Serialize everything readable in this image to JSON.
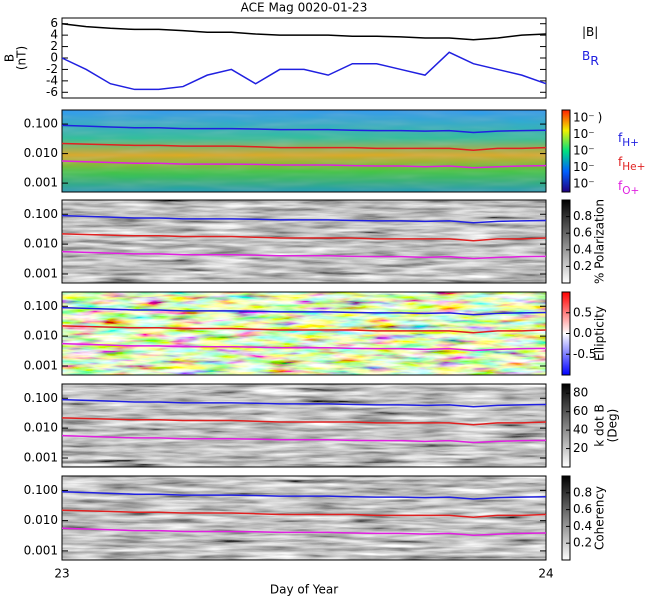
{
  "chart_data": [
    {
      "type": "line",
      "title": "ACE Mag 0020-01-23",
      "ylabel": [
        "B",
        "(nT)"
      ],
      "scale": "linear",
      "xlim": [
        23,
        24
      ],
      "ylim": [
        -7,
        7
      ],
      "yticks": [
        6,
        4,
        2,
        0,
        -2,
        -4,
        -6
      ],
      "x": [
        23,
        23.05,
        23.1,
        23.15,
        23.2,
        23.25,
        23.3,
        23.35,
        23.4,
        23.45,
        23.5,
        23.55,
        23.6,
        23.65,
        23.7,
        23.75,
        23.8,
        23.85,
        23.9,
        23.95,
        24
      ],
      "series": [
        {
          "name": "|B|",
          "color": "#000000",
          "values": [
            6,
            5.5,
            5.2,
            5,
            5,
            4.8,
            4.5,
            4.5,
            4.2,
            4,
            4,
            4,
            3.8,
            3.8,
            3.7,
            3.5,
            3.5,
            3.2,
            3.5,
            4,
            4.2
          ]
        },
        {
          "name": "B",
          "name_sub": "R",
          "color": "#2020e0",
          "values": [
            0,
            -2,
            -4.5,
            -5.5,
            -5.5,
            -5,
            -3,
            -2,
            -4.5,
            -2,
            -2,
            -3,
            -1,
            -1,
            -2,
            -3,
            1,
            -1,
            -2,
            -3,
            -4.5
          ]
        }
      ]
    },
    {
      "type": "spectrogram",
      "palette": "rainbow",
      "scale": "log",
      "xlim": [
        23,
        24
      ],
      "ylim": [
        0.0005,
        0.3
      ],
      "yticks": [
        {
          "value": 0.1,
          "label": "0.100"
        },
        {
          "value": 0.01,
          "label": "0.010"
        },
        0.001
      ],
      "colorbar_labels": [
        "10⁻",
        "10⁻",
        "10⁻",
        "10⁻",
        "10⁻"
      ],
      "colorbar_title": ")",
      "series": [
        {
          "name": "f",
          "name_sub": "H+",
          "color": "#2020e0",
          "values": [
            0.09,
            0.085,
            0.08,
            0.075,
            0.075,
            0.07,
            0.07,
            0.07,
            0.068,
            0.065,
            0.065,
            0.065,
            0.062,
            0.06,
            0.06,
            0.058,
            0.06,
            0.052,
            0.058,
            0.06,
            0.062
          ]
        },
        {
          "name": "f",
          "name_sub": "He+",
          "color": "#e02020",
          "values": [
            0.022,
            0.021,
            0.02,
            0.019,
            0.019,
            0.018,
            0.018,
            0.018,
            0.017,
            0.016,
            0.016,
            0.016,
            0.016,
            0.015,
            0.015,
            0.015,
            0.015,
            0.013,
            0.015,
            0.015,
            0.016
          ]
        },
        {
          "name": "f",
          "name_sub": "O+",
          "color": "#e020e0",
          "values": [
            0.0056,
            0.0053,
            0.005,
            0.0047,
            0.0047,
            0.0044,
            0.0044,
            0.0044,
            0.0043,
            0.0041,
            0.0041,
            0.0041,
            0.0039,
            0.0038,
            0.0038,
            0.0036,
            0.0038,
            0.0033,
            0.0036,
            0.0038,
            0.0039
          ]
        }
      ]
    },
    {
      "type": "spectrogram",
      "palette": "gray",
      "scale": "log",
      "xlim": [
        23,
        24
      ],
      "ylim": [
        0.0005,
        0.3
      ],
      "yticks": [
        {
          "value": 0.1,
          "label": "0.100"
        },
        {
          "value": 0.01,
          "label": "0.010"
        },
        0.001
      ],
      "clim": [
        0,
        1
      ],
      "cticks": [
        0.8,
        0.6,
        0.4,
        0.2
      ],
      "colorbar_title": "% Polarization"
    },
    {
      "type": "spectrogram",
      "palette": "redblue",
      "scale": "log",
      "xlim": [
        23,
        24
      ],
      "ylim": [
        0.0005,
        0.3
      ],
      "yticks": [
        {
          "value": 0.1,
          "label": "0.100"
        },
        {
          "value": 0.01,
          "label": "0.010"
        },
        0.001
      ],
      "clim": [
        -1,
        1
      ],
      "cticks": [
        0.5,
        {
          "value": 0,
          "label": "0.0"
        },
        -0.5
      ],
      "colorbar_title": "Ellipticity"
    },
    {
      "type": "spectrogram",
      "palette": "gray",
      "scale": "log",
      "xlim": [
        23,
        24
      ],
      "ylim": [
        0.0005,
        0.3
      ],
      "yticks": [
        {
          "value": 0.1,
          "label": "0.100"
        },
        {
          "value": 0.01,
          "label": "0.010"
        },
        0.001
      ],
      "clim": [
        0,
        90
      ],
      "cticks": [
        80,
        60,
        40,
        20
      ],
      "colorbar_title": [
        "k dot B",
        "(Deg)"
      ]
    },
    {
      "type": "spectrogram",
      "palette": "gray",
      "scale": "log",
      "xlim": [
        23,
        24
      ],
      "ylim": [
        0.0005,
        0.3
      ],
      "yticks": [
        {
          "value": 0.1,
          "label": "0.100"
        },
        {
          "value": 0.01,
          "label": "0.010"
        },
        0.001
      ],
      "clim": [
        0,
        1
      ],
      "cticks": [
        0.8,
        0.6,
        0.4,
        0.2
      ],
      "colorbar_title": "Coherency",
      "xticks": [
        23,
        24
      ],
      "xlabel": "Day of Year"
    }
  ]
}
